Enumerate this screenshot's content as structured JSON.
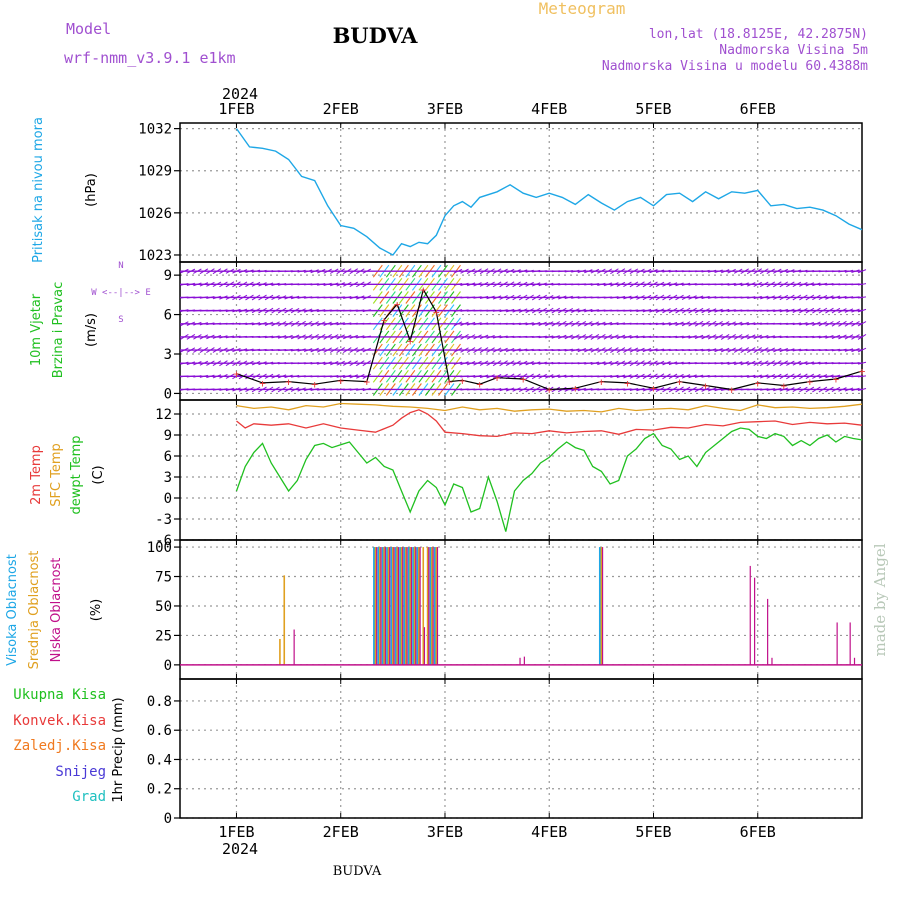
{
  "header": {
    "model_label": "Model",
    "model_name": "wrf-nmm_v3.9.1  e1km",
    "station": "BUDVA",
    "meteogram": "Meteogram",
    "lonlat": "lon,lat (18.8125E, 42.2875N)",
    "altitude": "Nadmorska Visina 5m",
    "model_altitude": "Nadmorska Visina u modelu 60.4388m",
    "footer_station": "BUDVA",
    "credit": "made by Angel"
  },
  "time_axis": {
    "year": "2024",
    "days": [
      "1FEB",
      "2FEB",
      "3FEB",
      "4FEB",
      "5FEB",
      "6FEB"
    ],
    "hours_range": [
      0,
      144
    ]
  },
  "colors": {
    "pressure": "#1ea7e6",
    "wind_violet": "#8a0fd6",
    "temp2m": "#e83a3a",
    "tsfc": "#e0a020",
    "dewpt": "#20c020",
    "cloud_high": "#1ea7e6",
    "cloud_mid": "#e0a020",
    "cloud_low": "#c0108a"
  },
  "panels": {
    "pressure": {
      "label": "Pritisak na nivou mora",
      "unit": "(hPa)",
      "ticks": [
        "1023",
        "1026",
        "1029",
        "1032"
      ]
    },
    "wind": {
      "label1": "10m Vjetar",
      "label2": "Brzina i Pravac",
      "unit": "(m/s)",
      "compass_n": "N",
      "compass_line": "W  <--|-->  E",
      "compass_s": "S",
      "ticks": [
        "0",
        "3",
        "6",
        "9"
      ]
    },
    "temp": {
      "label1": "2m Temp",
      "label2": "SFC Temp",
      "label3": "dewpt Temp",
      "unit": "(C)",
      "ticks": [
        "-6",
        "-3",
        "0",
        "3",
        "6",
        "9",
        "12"
      ]
    },
    "cloud": {
      "label1": "Visoka Oblacnost",
      "label2": "Srednja Oblacnost",
      "label3": "Niska Oblacnost",
      "unit": "(%)",
      "ticks": [
        "0",
        "25",
        "50",
        "75",
        "100"
      ]
    },
    "precip": {
      "legend": [
        "Ukupna Kisa",
        "Konvek.Kisa",
        "Zaledj.Kisa",
        "Snijeg",
        "Grad"
      ],
      "legend_colors": [
        "#20c020",
        "#e83a3a",
        "#f07a20",
        "#4a3ad6",
        "#20c0c0"
      ],
      "unit": "1hr Precip (mm)",
      "ticks": [
        "0",
        "0.2",
        "0.4",
        "0.6",
        "0.8"
      ]
    }
  },
  "chart_data": [
    {
      "type": "line",
      "title": "Pritisak na nivou mora",
      "ylabel": "(hPa)",
      "ylim": [
        1022.5,
        1032.4
      ],
      "series": [
        {
          "name": "Pritisak na nivou mora",
          "x": [
            0,
            3,
            6,
            9,
            12,
            15,
            18,
            21,
            24,
            27,
            30,
            33,
            36,
            38,
            40,
            42,
            44,
            46,
            48,
            50,
            52,
            54,
            56,
            60,
            63,
            66,
            69,
            72,
            75,
            78,
            81,
            84,
            87,
            90,
            93,
            96,
            99,
            102,
            105,
            108,
            111,
            114,
            117,
            120,
            123,
            126,
            129,
            132,
            135,
            138,
            141,
            144
          ],
          "y": [
            1032.0,
            1030.7,
            1030.6,
            1030.4,
            1029.8,
            1028.6,
            1028.3,
            1026.5,
            1025.1,
            1024.9,
            1024.3,
            1023.5,
            1023.0,
            1023.8,
            1023.6,
            1023.9,
            1023.8,
            1024.4,
            1025.8,
            1026.5,
            1026.8,
            1026.4,
            1027.1,
            1027.5,
            1028.0,
            1027.4,
            1027.1,
            1027.4,
            1027.1,
            1026.6,
            1027.3,
            1026.7,
            1026.2,
            1026.8,
            1027.1,
            1026.5,
            1027.3,
            1027.4,
            1026.8,
            1027.5,
            1027.0,
            1027.5,
            1027.4,
            1027.6,
            1026.5,
            1026.6,
            1026.3,
            1026.4,
            1026.2,
            1025.8,
            1025.2,
            1024.8
          ]
        }
      ]
    },
    {
      "type": "line",
      "title": "10m Vjetar Brzina i Pravac",
      "ylabel": "(m/s)",
      "ylim": [
        -0.5,
        10
      ],
      "series": [
        {
          "name": "Brzina",
          "x": [
            0,
            6,
            12,
            18,
            24,
            30,
            34,
            37,
            40,
            43,
            46,
            49,
            52,
            56,
            60,
            66,
            72,
            78,
            84,
            90,
            96,
            102,
            108,
            114,
            120,
            126,
            132,
            138,
            144
          ],
          "y": [
            1.5,
            0.8,
            0.9,
            0.7,
            1.0,
            0.9,
            5.6,
            6.8,
            4.0,
            7.9,
            6.2,
            0.9,
            1.0,
            0.7,
            1.2,
            1.1,
            0.3,
            0.4,
            0.9,
            0.8,
            0.4,
            0.9,
            0.6,
            0.3,
            0.8,
            0.6,
            0.9,
            1.1,
            1.7
          ]
        }
      ]
    },
    {
      "type": "line",
      "title": "2m Temp / SFC Temp / dewpt Temp",
      "ylabel": "(C)",
      "ylim": [
        -6,
        14
      ],
      "series": [
        {
          "name": "2m Temp",
          "x": [
            0,
            2,
            4,
            8,
            12,
            16,
            20,
            24,
            28,
            32,
            36,
            38,
            40,
            42,
            44,
            46,
            48,
            52,
            56,
            60,
            64,
            68,
            72,
            76,
            80,
            84,
            88,
            92,
            96,
            100,
            104,
            108,
            112,
            116,
            120,
            124,
            128,
            132,
            136,
            140,
            144
          ],
          "y": [
            11.0,
            10.0,
            10.6,
            10.4,
            10.6,
            10.0,
            10.6,
            10.0,
            9.7,
            9.4,
            10.4,
            11.4,
            12.2,
            12.6,
            12.0,
            11.0,
            9.4,
            9.2,
            8.9,
            8.8,
            9.3,
            9.2,
            9.6,
            9.3,
            9.5,
            9.6,
            9.1,
            9.8,
            9.7,
            10.1,
            10.0,
            10.5,
            10.3,
            10.8,
            10.9,
            11.0,
            10.5,
            10.8,
            10.6,
            10.7,
            10.4
          ]
        },
        {
          "name": "SFC Temp",
          "x": [
            0,
            4,
            8,
            12,
            16,
            20,
            24,
            28,
            32,
            36,
            40,
            44,
            48,
            52,
            56,
            60,
            64,
            68,
            72,
            76,
            80,
            84,
            88,
            92,
            96,
            100,
            104,
            108,
            112,
            116,
            120,
            124,
            128,
            132,
            136,
            140,
            144
          ],
          "y": [
            13.2,
            12.8,
            13.0,
            12.6,
            13.2,
            13.0,
            13.5,
            13.4,
            13.3,
            13.1,
            13.0,
            12.8,
            12.5,
            13.0,
            12.6,
            12.8,
            12.4,
            12.6,
            12.7,
            12.4,
            12.5,
            12.3,
            12.8,
            12.5,
            12.7,
            12.8,
            12.6,
            13.2,
            12.8,
            12.5,
            13.3,
            12.9,
            13.0,
            12.8,
            12.9,
            13.1,
            13.4
          ]
        },
        {
          "name": "dewpt Temp",
          "x": [
            0,
            2,
            4,
            6,
            8,
            10,
            12,
            14,
            16,
            18,
            20,
            22,
            24,
            26,
            28,
            30,
            32,
            34,
            36,
            38,
            40,
            42,
            44,
            46,
            48,
            50,
            52,
            54,
            56,
            58,
            60,
            62,
            64,
            66,
            68,
            70,
            72,
            74,
            76,
            78,
            80,
            82,
            84,
            86,
            88,
            90,
            92,
            94,
            96,
            98,
            100,
            102,
            104,
            106,
            108,
            110,
            112,
            114,
            116,
            118,
            120,
            122,
            124,
            126,
            128,
            130,
            132,
            134,
            136,
            138,
            140,
            142,
            144
          ],
          "y": [
            1.0,
            4.5,
            6.5,
            7.8,
            5.0,
            3.0,
            1.0,
            2.5,
            5.5,
            7.5,
            7.8,
            7.2,
            7.6,
            8.0,
            6.5,
            5.0,
            5.8,
            4.5,
            4.0,
            1.0,
            -2.0,
            1.0,
            2.5,
            1.5,
            -1.0,
            2.0,
            1.5,
            -2.0,
            -1.5,
            3.0,
            -0.5,
            -4.8,
            1.0,
            2.5,
            3.5,
            5.0,
            5.8,
            7.0,
            8.0,
            7.2,
            6.8,
            4.5,
            3.8,
            2.0,
            2.5,
            6.0,
            7.0,
            8.5,
            9.2,
            7.5,
            7.0,
            5.5,
            6.0,
            4.5,
            6.5,
            7.5,
            8.5,
            9.5,
            10.0,
            9.8,
            8.8,
            8.5,
            9.2,
            8.8,
            7.5,
            8.2,
            7.5,
            8.5,
            9.0,
            8.0,
            8.8,
            8.5,
            8.3
          ]
        }
      ]
    },
    {
      "type": "bar",
      "title": "Oblacnost",
      "ylabel": "(%)",
      "ylim": [
        0,
        100
      ],
      "series": [
        {
          "name": "Visoka Oblacnost",
          "x": [
            32,
            33,
            34,
            35,
            36,
            37,
            38,
            39,
            40,
            41,
            42,
            45,
            46,
            84
          ],
          "y": [
            100,
            100,
            100,
            100,
            100,
            100,
            100,
            100,
            100,
            100,
            100,
            100,
            100,
            100
          ]
        },
        {
          "name": "Srednja Oblacnost",
          "x": [
            10,
            11,
            32,
            33,
            34,
            35,
            36,
            37,
            38,
            39,
            40,
            41,
            42,
            43,
            44,
            45,
            46,
            84
          ],
          "y": [
            22,
            76,
            100,
            100,
            100,
            100,
            100,
            100,
            100,
            100,
            100,
            100,
            100,
            100,
            100,
            100,
            100,
            100
          ]
        },
        {
          "name": "Niska Oblacnost",
          "x": [
            13,
            32,
            33,
            34,
            35,
            36,
            37,
            38,
            39,
            40,
            41,
            42,
            43,
            44,
            45,
            46,
            65,
            66,
            84,
            118,
            119,
            122,
            123,
            138,
            141,
            142
          ],
          "y": [
            30,
            100,
            100,
            100,
            100,
            100,
            100,
            100,
            100,
            100,
            100,
            100,
            32,
            100,
            100,
            100,
            6,
            7,
            100,
            84,
            74,
            56,
            6,
            36,
            36,
            6
          ]
        }
      ]
    },
    {
      "type": "bar",
      "title": "1hr Precip",
      "ylabel": "1hr Precip (mm)",
      "ylim": [
        0,
        0.95
      ],
      "series": [
        {
          "name": "Ukupna Kisa",
          "x": [],
          "y": []
        }
      ]
    }
  ]
}
